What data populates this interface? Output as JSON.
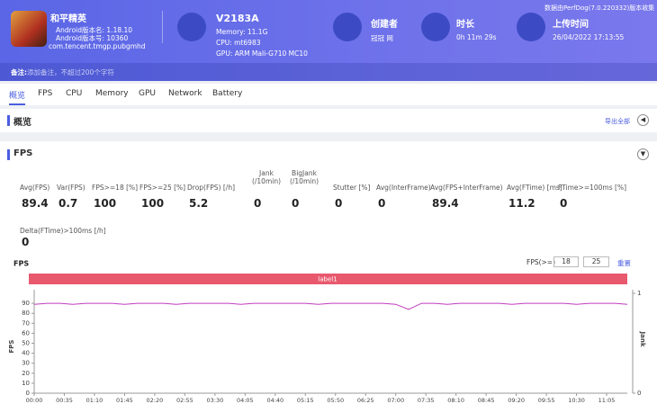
{
  "header": {
    "app_name": "和平精英",
    "android_version": "Android版本名: 1.18.10",
    "android_code": "Android版本号: 10360",
    "package": "com.tencent.tmgp.pubgmhd",
    "device": "V2183A",
    "memory": "Memory: 11.1G",
    "cpu": "CPU: mt6983",
    "gpu": "GPU: ARM Mali-G710 MC10",
    "creator_label": "创建者",
    "creator": "冠冠 网",
    "duration_label": "时长",
    "duration": "0h 11m 29s",
    "upload_label": "上传时间",
    "upload": "26/04/2022 17:13:55",
    "version_note": "数据由PerfDog(7.0.220332)版本收集",
    "remark_label": "备注:",
    "remark_placeholder": "添加备注，不超过200个字符"
  },
  "tabs": [
    "概览",
    "FPS",
    "CPU",
    "Memory",
    "GPU",
    "Network",
    "Battery"
  ],
  "overview": {
    "title": "概览",
    "export": "导出全部"
  },
  "fps_section": {
    "title": "FPS",
    "metrics": [
      {
        "label": "Avg(FPS)",
        "value": 89.4
      },
      {
        "label": "Var(FPS)",
        "value": 0.7
      },
      {
        "label": "FPS>=18 [%]",
        "value": 100
      },
      {
        "label": "FPS>=25 [%]",
        "value": 100
      },
      {
        "label": "Drop(FPS) [/h]",
        "value": 5.2
      },
      {
        "label": "Jank (/10min)",
        "value": 0
      },
      {
        "label": "BigJank (/10min)",
        "value": 0
      },
      {
        "label": "Stutter [%]",
        "value": 0
      },
      {
        "label": "Avg(InterFrame)",
        "value": 0
      },
      {
        "label": "Avg(FPS+InterFrame)",
        "value": 89.4
      },
      {
        "label": "Avg(FTime) [ms]",
        "value": 11.2
      },
      {
        "label": "FTime>=100ms [%]",
        "value": 0
      },
      {
        "label": "Delta(FTime)>100ms [/h]",
        "value": 0
      }
    ],
    "threshold_label": "FPS(>=)",
    "thresholds": [
      18,
      25
    ],
    "reset": "重置"
  },
  "chart_data": {
    "type": "line",
    "title": "FPS",
    "band_label": "label1",
    "ylabel": "FPS",
    "y2label": "Jank",
    "x": [
      0,
      15,
      30,
      45,
      60,
      75,
      90,
      105,
      120,
      135,
      150,
      165,
      180,
      195,
      210,
      225,
      240,
      255,
      270,
      285,
      300,
      315,
      330,
      345,
      360,
      375,
      390,
      405,
      420,
      435,
      450,
      465,
      480,
      495,
      510,
      525,
      540,
      555,
      570,
      585,
      600,
      615,
      630,
      645,
      660,
      675,
      689
    ],
    "series": [
      {
        "name": "FPS",
        "color": "#c03cc0",
        "values": [
          89,
          90,
          90,
          89,
          90,
          90,
          90,
          89,
          90,
          90,
          90,
          89,
          90,
          90,
          90,
          90,
          89,
          90,
          90,
          90,
          90,
          90,
          89,
          90,
          90,
          90,
          90,
          90,
          89,
          84,
          90,
          90,
          89,
          90,
          90,
          90,
          90,
          89,
          90,
          90,
          90,
          90,
          89,
          90,
          90,
          90,
          89
        ]
      }
    ],
    "xlim": [
      0,
      689
    ],
    "xticks": [
      {
        "value": 0,
        "label": "00:00"
      },
      {
        "value": 35,
        "label": "00:35"
      },
      {
        "value": 70,
        "label": "01:10"
      },
      {
        "value": 105,
        "label": "01:45"
      },
      {
        "value": 140,
        "label": "02:20"
      },
      {
        "value": 175,
        "label": "02:55"
      },
      {
        "value": 210,
        "label": "03:30"
      },
      {
        "value": 245,
        "label": "04:05"
      },
      {
        "value": 280,
        "label": "04:40"
      },
      {
        "value": 315,
        "label": "05:15"
      },
      {
        "value": 350,
        "label": "05:50"
      },
      {
        "value": 385,
        "label": "06:25"
      },
      {
        "value": 420,
        "label": "07:00"
      },
      {
        "value": 455,
        "label": "07:35"
      },
      {
        "value": 490,
        "label": "08:10"
      },
      {
        "value": 525,
        "label": "08:45"
      },
      {
        "value": 560,
        "label": "09:20"
      },
      {
        "value": 595,
        "label": "09:55"
      },
      {
        "value": 630,
        "label": "10:30"
      },
      {
        "value": 665,
        "label": "11:05"
      }
    ],
    "ylim": [
      0,
      100
    ],
    "yticks": [
      0,
      10,
      20,
      30,
      40,
      50,
      60,
      70,
      80,
      90
    ],
    "y2lim": [
      0,
      1
    ],
    "y2ticks": [
      0,
      1
    ],
    "grid": false
  }
}
